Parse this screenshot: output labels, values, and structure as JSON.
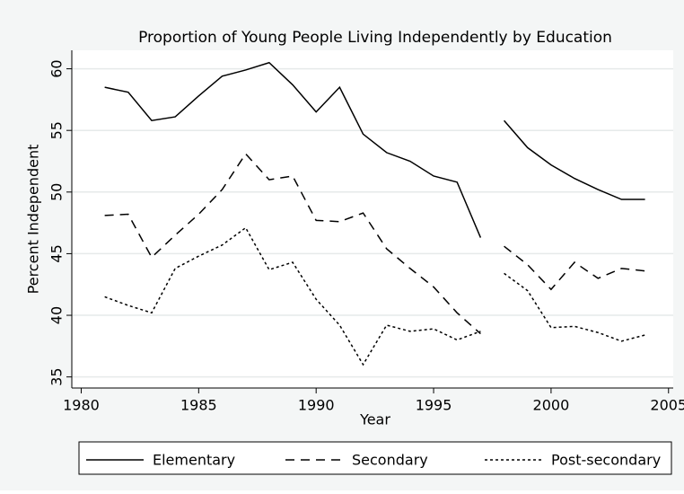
{
  "chart_data": {
    "type": "line",
    "title": "Proportion of Young People Living Independently by Education",
    "x_label": "Year",
    "y_label": "Percent Independent",
    "x": [
      1981,
      1982,
      1983,
      1984,
      1985,
      1986,
      1987,
      1988,
      1989,
      1990,
      1991,
      1992,
      1993,
      1994,
      1995,
      1996,
      1997,
      1998,
      1999,
      2000,
      2001,
      2002,
      2003,
      2004
    ],
    "break_after": 1997,
    "series": [
      {
        "name": "Elementary",
        "color": "#000000",
        "dash": "solid",
        "values": [
          58.5,
          58.1,
          55.8,
          56.1,
          57.8,
          59.4,
          59.9,
          60.5,
          58.7,
          56.5,
          58.5,
          54.7,
          53.2,
          52.5,
          51.3,
          50.8,
          46.3,
          55.8,
          53.6,
          52.2,
          51.1,
          50.2,
          49.4,
          49.4
        ]
      },
      {
        "name": "Secondary",
        "color": "#000000",
        "dash": "dash",
        "values": [
          48.1,
          48.2,
          44.7,
          46.5,
          48.2,
          50.2,
          53.1,
          51.0,
          51.3,
          47.7,
          47.6,
          48.3,
          45.4,
          43.8,
          42.3,
          40.2,
          38.5,
          45.6,
          44.1,
          42.1,
          44.3,
          43.0,
          43.8,
          43.6
        ]
      },
      {
        "name": "Post-secondary",
        "color": "#000000",
        "dash": "dot",
        "values": [
          41.5,
          40.8,
          40.2,
          43.8,
          44.8,
          45.7,
          47.1,
          43.7,
          44.3,
          41.3,
          39.2,
          36.0,
          39.2,
          38.7,
          38.9,
          38.0,
          38.7,
          43.4,
          42.0,
          39.0,
          39.1,
          38.6,
          37.9,
          38.4
        ]
      }
    ],
    "xlim": [
      1979.6,
      2005.2
    ],
    "xticks": [
      1980,
      1985,
      1990,
      1995,
      2000,
      2005
    ],
    "ylim": [
      34.1,
      61.5
    ],
    "yticks": [
      35,
      40,
      45,
      50,
      55,
      60
    ],
    "grid": true,
    "legend": "bottom"
  }
}
